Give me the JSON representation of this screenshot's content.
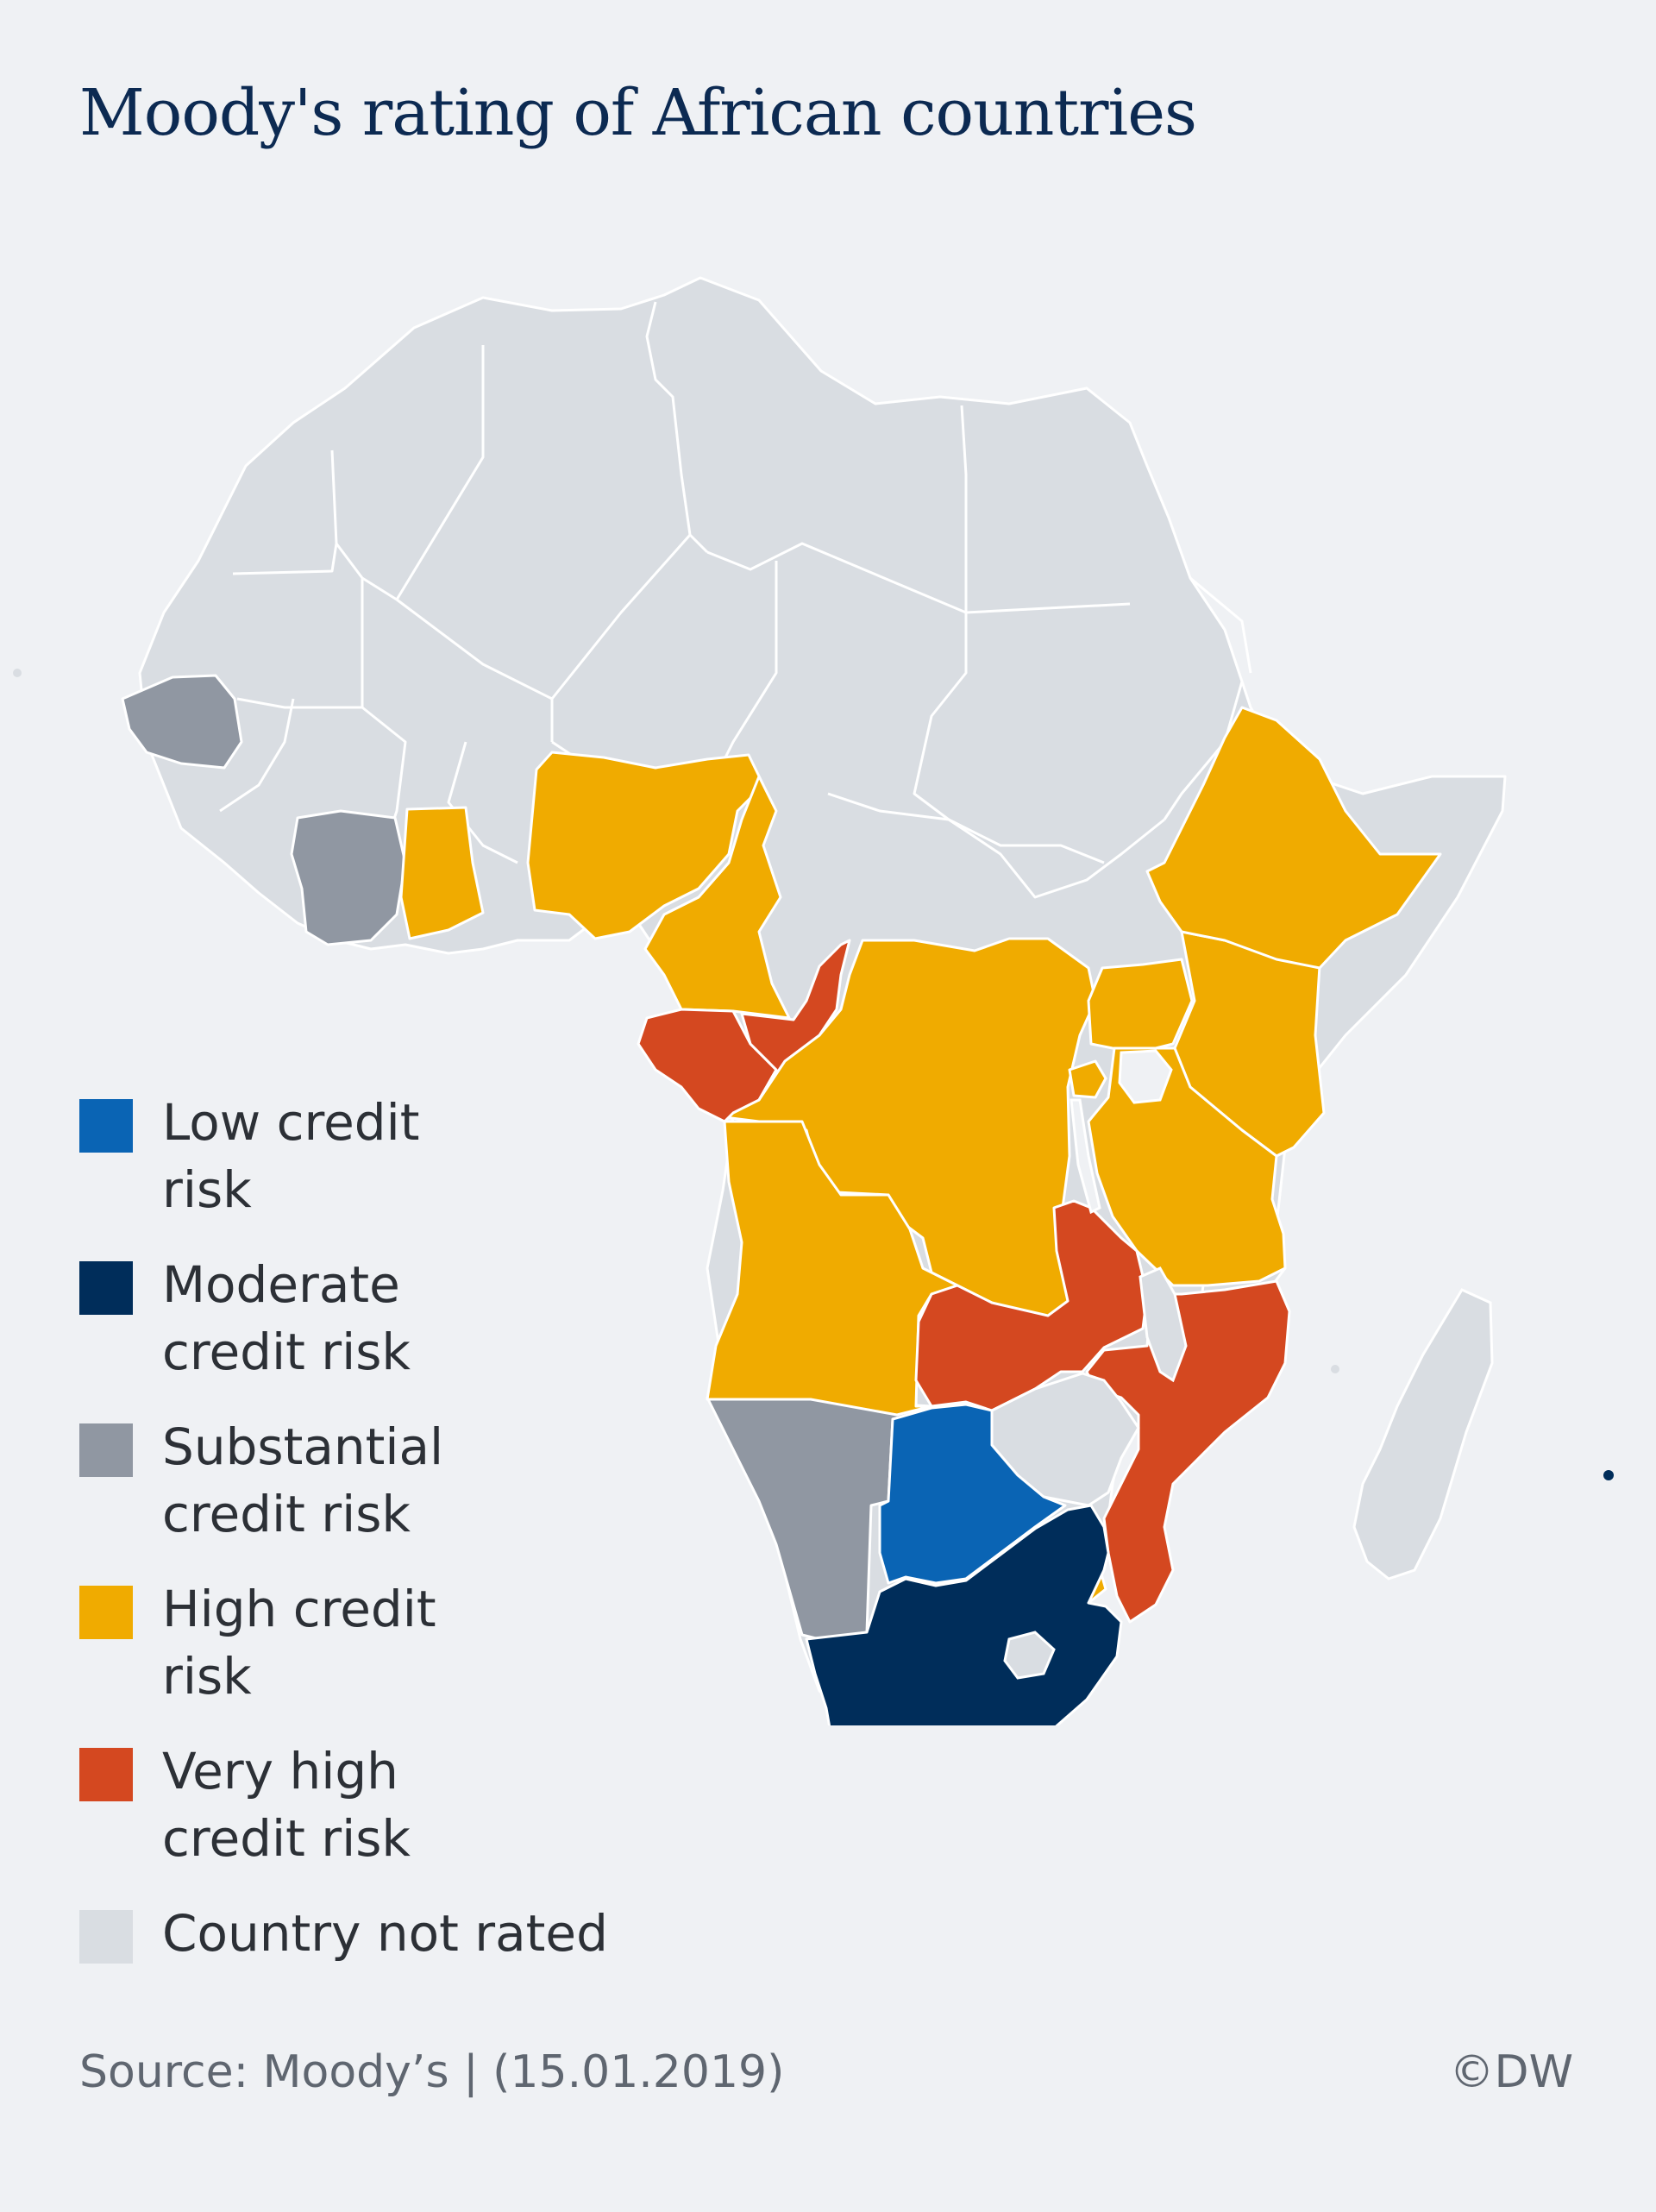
{
  "title": "Moody's rating of African countries",
  "legend": [
    {
      "label": "Low credit\nrisk",
      "color": "#0a64b4"
    },
    {
      "label": "Moderate\ncredit risk",
      "color": "#002d5a"
    },
    {
      "label": "Substantial\ncredit risk",
      "color": "#9097a2"
    },
    {
      "label": "High credit\nrisk",
      "color": "#f0ab00"
    },
    {
      "label": "Very high\ncredit risk",
      "color": "#d44820"
    },
    {
      "label": "Country not rated",
      "color": "#d9dde2"
    }
  ],
  "map": {
    "region": "Africa",
    "countries_by_category": {
      "low": [
        "Botswana"
      ],
      "moderate": [
        "South Africa"
      ],
      "substantial": [
        "Senegal",
        "Côte d'Ivoire",
        "Namibia"
      ],
      "high": [
        "Ghana",
        "Nigeria",
        "Cameroon",
        "DR Congo",
        "Angola",
        "Ethiopia",
        "Kenya",
        "Uganda",
        "Rwanda",
        "Tanzania",
        "Swaziland"
      ],
      "very_high": [
        "Gabon",
        "Republic of the Congo",
        "Zambia",
        "Mozambique"
      ],
      "not_rated": [
        "Morocco",
        "Western Sahara",
        "Mauritania",
        "Mali",
        "Algeria",
        "Tunisia",
        "Libya",
        "Egypt",
        "Niger",
        "Chad",
        "Sudan",
        "South Sudan",
        "Central African Republic",
        "Burkina Faso",
        "Guinea",
        "Sierra Leone",
        "Liberia",
        "Togo",
        "Benin",
        "Eritrea",
        "Somalia",
        "Zimbabwe",
        "Malawi",
        "Madagascar",
        "Lesotho",
        "Equatorial Guinea",
        "Burundi"
      ]
    }
  },
  "footer": {
    "source": "Source: Moody’s | (15.01.2019)",
    "credit": "©DW"
  }
}
